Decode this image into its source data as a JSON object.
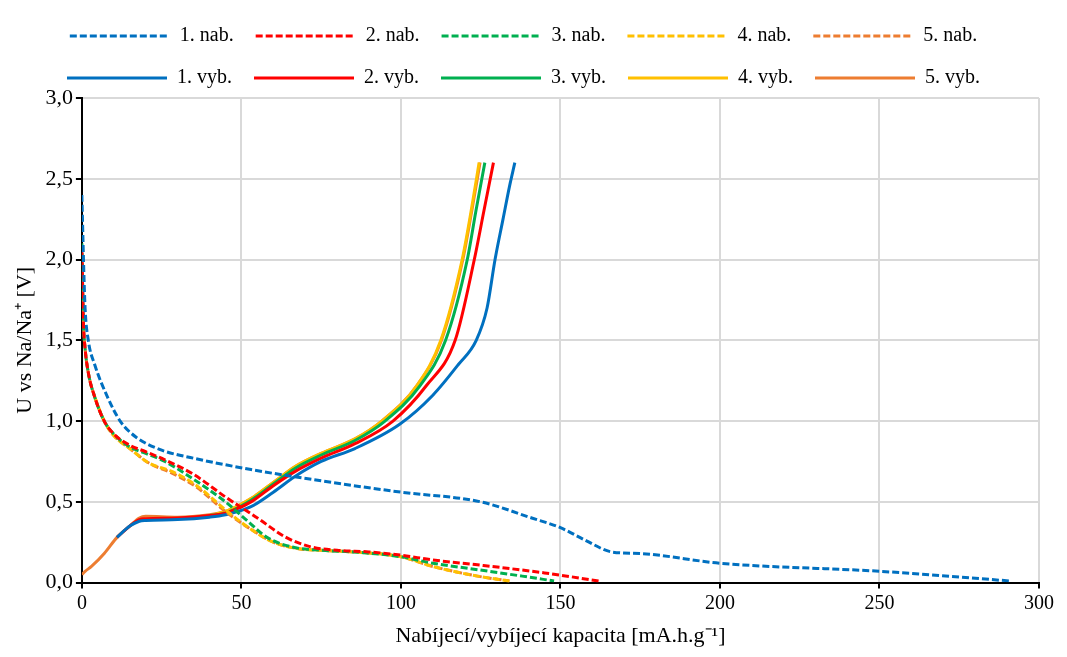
{
  "chart_data": {
    "type": "line",
    "xlabel": "Nabíjecí/vybíjecí kapacita [mA.h.g⁻¹]",
    "ylabel": "U vs Na/Na⁺ [V]",
    "xlim": [
      0,
      300
    ],
    "xticks": [
      0,
      50,
      100,
      150,
      200,
      250,
      300
    ],
    "ylim": [
      0,
      3
    ],
    "yticks": [
      {
        "value": 0,
        "label": "0,0"
      },
      {
        "value": 0.5,
        "label": "0,5"
      },
      {
        "value": 1,
        "label": "1,0"
      },
      {
        "value": 1.5,
        "label": "1,5"
      },
      {
        "value": 2,
        "label": "2,0"
      },
      {
        "value": 2.5,
        "label": "2,5"
      },
      {
        "value": 3,
        "label": "3,0"
      }
    ],
    "grid": true,
    "legend": "top",
    "marker": "none",
    "series": [
      {
        "name": "1. nab.",
        "color": "#0070c0",
        "line_style": "dashed",
        "x": [
          0,
          0.5,
          1,
          2,
          4,
          8,
          12,
          17,
          25,
          35,
          53,
          75,
          100,
          125,
          141,
          150,
          158,
          166,
          175,
          200,
          250,
          291
        ],
        "values": [
          2.4,
          2.0,
          1.7,
          1.5,
          1.35,
          1.15,
          1.0,
          0.9,
          0.82,
          0.77,
          0.7,
          0.63,
          0.56,
          0.5,
          0.4,
          0.34,
          0.26,
          0.19,
          0.18,
          0.12,
          0.07,
          0.01
        ]
      },
      {
        "name": "2. nab.",
        "color": "#ff0000",
        "line_style": "dashed",
        "x": [
          0,
          0.5,
          1,
          2,
          4,
          7,
          10,
          15,
          20,
          26,
          35,
          45,
          55,
          64,
          72,
          80,
          90,
          100,
          110,
          124,
          145,
          162
        ],
        "values": [
          2.05,
          1.6,
          1.45,
          1.3,
          1.15,
          1.0,
          0.92,
          0.85,
          0.81,
          0.76,
          0.67,
          0.53,
          0.4,
          0.28,
          0.22,
          0.2,
          0.19,
          0.17,
          0.14,
          0.11,
          0.06,
          0.01
        ]
      },
      {
        "name": "3. nab.",
        "color": "#00b050",
        "line_style": "dashed",
        "x": [
          0,
          0.5,
          1,
          2,
          4,
          7,
          10,
          15,
          20,
          26,
          35,
          45,
          52,
          58,
          66,
          75,
          85,
          100,
          110,
          124,
          138,
          148
        ],
        "values": [
          2.1,
          1.6,
          1.45,
          1.3,
          1.15,
          1.0,
          0.92,
          0.84,
          0.8,
          0.75,
          0.64,
          0.5,
          0.38,
          0.28,
          0.22,
          0.2,
          0.19,
          0.16,
          0.12,
          0.08,
          0.04,
          0.01
        ]
      },
      {
        "name": "4. nab.",
        "color": "#ffc000",
        "line_style": "dashed",
        "x": [
          4,
          7,
          10,
          15,
          21,
          28,
          36,
          45,
          53,
          60,
          68,
          75,
          85,
          100,
          110,
          124,
          134
        ],
        "values": [
          1.15,
          1.0,
          0.91,
          0.83,
          0.74,
          0.69,
          0.6,
          0.45,
          0.33,
          0.25,
          0.21,
          0.2,
          0.19,
          0.16,
          0.1,
          0.04,
          0.01
        ]
      },
      {
        "name": "5. nab.",
        "color": "#ed7d31",
        "line_style": "dashed",
        "x": [
          0,
          0.5,
          1,
          2,
          4,
          7,
          10,
          15,
          21,
          28,
          36,
          45,
          53,
          60,
          68,
          75,
          85,
          100,
          110,
          124,
          134
        ],
        "values": [
          2.0,
          1.6,
          1.45,
          1.3,
          1.15,
          1.0,
          0.91,
          0.83,
          0.74,
          0.68,
          0.59,
          0.44,
          0.33,
          0.25,
          0.21,
          0.2,
          0.19,
          0.16,
          0.1,
          0.04,
          0.01
        ]
      },
      {
        "name": "1. vyb.",
        "color": "#0070c0",
        "line_style": "solid",
        "x": [
          11,
          15,
          18,
          20,
          30,
          40,
          45,
          53,
          60,
          67,
          75,
          85.6,
          99.6,
          110,
          118,
          123.6,
          127,
          129.5,
          132,
          134,
          135.7
        ],
        "values": [
          0.28,
          0.35,
          0.38,
          0.385,
          0.39,
          0.405,
          0.42,
          0.47,
          0.56,
          0.66,
          0.75,
          0.83,
          0.98,
          1.16,
          1.35,
          1.5,
          1.7,
          2.0,
          2.25,
          2.45,
          2.6
        ]
      },
      {
        "name": "2. vyb.",
        "color": "#ff0000",
        "line_style": "solid",
        "x": [
          11,
          15,
          18,
          20,
          30,
          40,
          45,
          53,
          60,
          67,
          75,
          85.6,
          97.5,
          108,
          117,
          123,
          126,
          129
        ],
        "values": [
          0.28,
          0.35,
          0.39,
          0.395,
          0.4,
          0.415,
          0.43,
          0.5,
          0.6,
          0.69,
          0.77,
          0.86,
          1.0,
          1.22,
          1.5,
          2.0,
          2.3,
          2.6
        ]
      },
      {
        "name": "3. vyb.",
        "color": "#00b050",
        "line_style": "solid",
        "x": [
          40,
          45,
          53,
          60,
          67,
          75,
          85.6,
          95,
          106,
          114,
          120.8,
          123.5,
          126.3
        ],
        "values": [
          0.415,
          0.43,
          0.51,
          0.61,
          0.71,
          0.79,
          0.88,
          1.0,
          1.22,
          1.5,
          2.0,
          2.3,
          2.6
        ]
      },
      {
        "name": "4. vyb.",
        "color": "#ffc000",
        "line_style": "solid",
        "x": [
          40,
          45,
          53,
          60,
          67,
          75,
          85.6,
          94,
          105,
          112.5,
          119.2,
          122,
          124.5
        ],
        "values": [
          0.415,
          0.44,
          0.52,
          0.62,
          0.72,
          0.8,
          0.89,
          1.0,
          1.22,
          1.5,
          2.0,
          2.3,
          2.6
        ]
      },
      {
        "name": "5. vyb.",
        "color": "#ed7d31",
        "line_style": "solid",
        "x": [
          0,
          1,
          3,
          7,
          11,
          15,
          18,
          20,
          30,
          40,
          45,
          53,
          60,
          67,
          75,
          85.6,
          94,
          105,
          112.7,
          119.4,
          122.2,
          124.8
        ],
        "values": [
          0.05,
          0.07,
          0.1,
          0.18,
          0.28,
          0.35,
          0.4,
          0.41,
          0.405,
          0.42,
          0.44,
          0.52,
          0.62,
          0.72,
          0.8,
          0.89,
          1.0,
          1.22,
          1.5,
          2.0,
          2.3,
          2.6
        ]
      }
    ]
  }
}
